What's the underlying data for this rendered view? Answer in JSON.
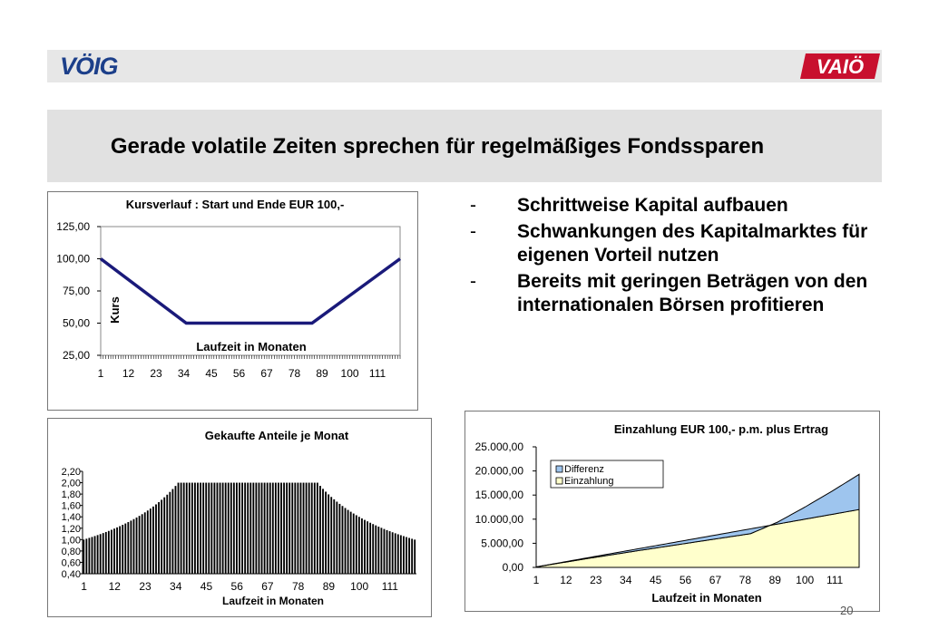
{
  "header": {
    "logo_left": "VÖIG",
    "logo_right": "VAIÖ"
  },
  "title": "Gerade volatile Zeiten sprechen für regelmäßiges Fondssparen",
  "bullets": [
    {
      "dash": "-",
      "text": "Schrittweise Kapital aufbauen"
    },
    {
      "dash": "-",
      "text": "Schwankungen des Kapitalmarktes für eigenen Vorteil nutzen"
    },
    {
      "dash": "-",
      "text": "Bereits mit geringen Beträgen von den internationalen Börsen profitieren"
    }
  ],
  "page_number": "20",
  "chart_data": [
    {
      "type": "line",
      "title": "Kursverlauf : Start und Ende EUR 100,-",
      "xlabel": "Laufzeit in Monaten",
      "ylabel": "Kurs",
      "ylim": [
        25,
        125
      ],
      "yticks": [
        "125,00",
        "100,00",
        "75,00",
        "50,00",
        "25,00"
      ],
      "xticks": [
        "1",
        "12",
        "23",
        "34",
        "45",
        "56",
        "67",
        "78",
        "89",
        "100",
        "111"
      ],
      "xlim": [
        1,
        120
      ],
      "series": [
        {
          "name": "Kurs",
          "x": [
            1,
            35,
            85,
            120
          ],
          "values": [
            100,
            50,
            50,
            100
          ]
        }
      ]
    },
    {
      "type": "bar",
      "title": "Gekaufte Anteile je Monat",
      "xlabel": "Laufzeit in Monaten",
      "ylim": [
        0.4,
        2.2
      ],
      "yticks": [
        "2,20",
        "2,00",
        "1,80",
        "1,60",
        "1,40",
        "1,20",
        "1,00",
        "0,80",
        "0,60",
        "0,40"
      ],
      "xticks": [
        "1",
        "12",
        "23",
        "34",
        "45",
        "56",
        "67",
        "78",
        "89",
        "100",
        "111"
      ],
      "months": 120,
      "formula": "values = 100 / Kurs per month",
      "values_sample": {
        "1": 1.0,
        "20": 1.32,
        "35": 2.0,
        "85": 2.0,
        "100": 1.45,
        "120": 1.0
      }
    },
    {
      "type": "area",
      "title": "Einzahlung EUR 100,- p.m.  plus Ertrag",
      "xlabel": "Laufzeit in Monaten",
      "ylim": [
        0,
        25000
      ],
      "yticks": [
        "25.000,00",
        "20.000,00",
        "15.000,00",
        "10.000,00",
        "5.000,00",
        "0,00"
      ],
      "xticks": [
        "1",
        "12",
        "23",
        "34",
        "45",
        "56",
        "67",
        "78",
        "89",
        "100",
        "111"
      ],
      "legend": [
        "Differenz",
        "Einzahlung"
      ],
      "legend_position": "top-left",
      "series": [
        {
          "name": "Einzahlung",
          "x": [
            1,
            120
          ],
          "values": [
            100,
            12000
          ]
        },
        {
          "name": "Differenz",
          "x": [
            1,
            20,
            40,
            60,
            80,
            90,
            100,
            110,
            120
          ],
          "values": [
            0,
            -150,
            -400,
            -700,
            -1000,
            400,
            2500,
            4800,
            7300
          ]
        }
      ],
      "colors": {
        "Differenz": "#9ec5ee",
        "Einzahlung": "#ffffcc"
      }
    }
  ]
}
